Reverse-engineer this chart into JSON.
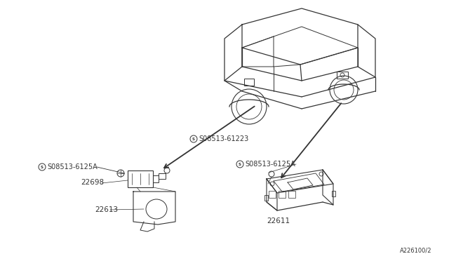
{
  "bg_color": "#ffffff",
  "line_color": "#333333",
  "text_color": "#333333",
  "title_ref": "A226100/2",
  "labels": {
    "part1": "S08513-61223",
    "part2_left": "S08513-6125A",
    "part2_right": "S08513-6125A",
    "part3": "22698",
    "part4": "22613",
    "part5": "22611"
  },
  "figsize": [
    6.4,
    3.72
  ],
  "dpi": 100
}
